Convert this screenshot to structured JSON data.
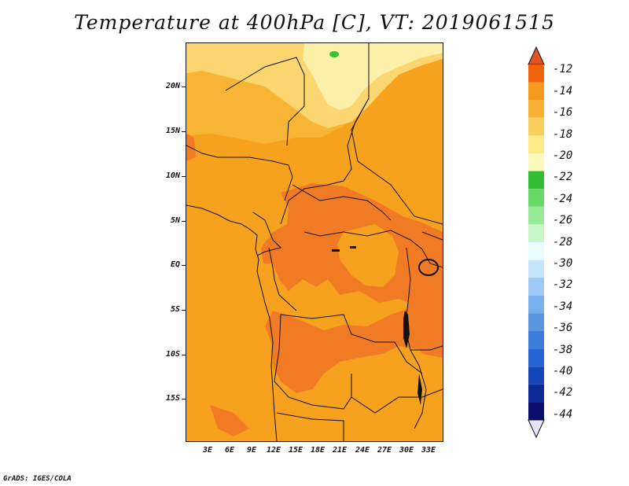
{
  "title": "Temperature at 400hPa [C], VT: 2019061515",
  "footer": "GrADS: IGES/COLA",
  "map": {
    "lat_labels": [
      "20N",
      "15N",
      "10N",
      "5N",
      "EQ",
      "5S",
      "10S",
      "15S"
    ],
    "lon_labels": [
      "3E",
      "6E",
      "9E",
      "12E",
      "15E",
      "18E",
      "21E",
      "24E",
      "27E",
      "30E",
      "33E"
    ]
  },
  "colorbar": {
    "labels": [
      "-12",
      "-14",
      "-16",
      "-18",
      "-20",
      "-22",
      "-24",
      "-26",
      "-28",
      "-30",
      "-32",
      "-34",
      "-36",
      "-38",
      "-40",
      "-42",
      "-44"
    ],
    "colors": [
      "#e0541e",
      "#f0620c",
      "#f7981e",
      "#f7b034",
      "#f8d060",
      "#faea88",
      "#fdf9be",
      "#32bc32",
      "#68d868",
      "#98ea98",
      "#c8f6c8",
      "#e8fcfc",
      "#c4e4fa",
      "#9ccaf4",
      "#78b0ec",
      "#5896e2",
      "#3c7adc",
      "#2664d4",
      "#1446b8",
      "#0c2a96",
      "#0c0c6c",
      "#e6e6fa"
    ]
  },
  "field_colors": {
    "orange_main": "#f7a21e",
    "orange_light": "#f8b434",
    "orange_dark": "#f07b24",
    "yellow": "#fcd670",
    "pale_yellow": "#fdf0a8",
    "green": "#34c434"
  }
}
